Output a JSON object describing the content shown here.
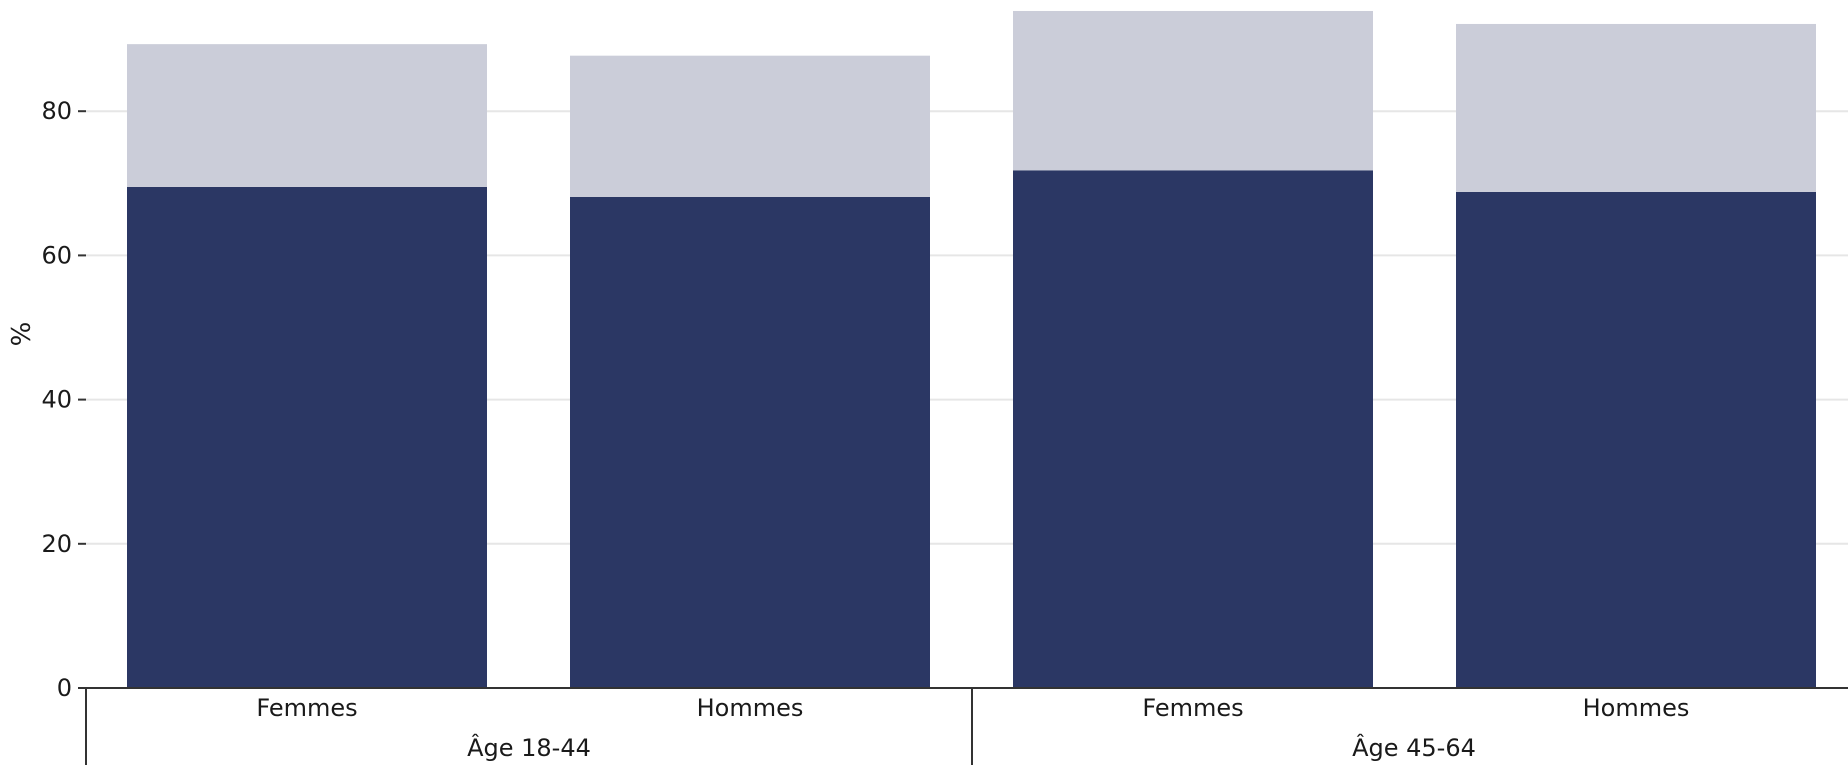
{
  "chart_data": {
    "type": "bar",
    "stacked": true,
    "ylabel": "%",
    "ylim": [
      0,
      95
    ],
    "yticks": [
      0,
      20,
      40,
      60,
      80
    ],
    "grid": true,
    "groups": [
      {
        "label": "Âge 18-44",
        "categories": [
          "Femmes",
          "Hommes"
        ]
      },
      {
        "label": "Âge 45-64",
        "categories": [
          "Femmes",
          "Hommes"
        ]
      }
    ],
    "categories": [
      "Femmes",
      "Hommes",
      "Femmes",
      "Hommes"
    ],
    "series": [
      {
        "color": "#2b3764",
        "values": [
          69.5,
          68.1,
          71.8,
          68.8
        ]
      },
      {
        "color": "#cbcdd9",
        "values": [
          19.8,
          19.6,
          22.1,
          23.3
        ]
      }
    ]
  }
}
